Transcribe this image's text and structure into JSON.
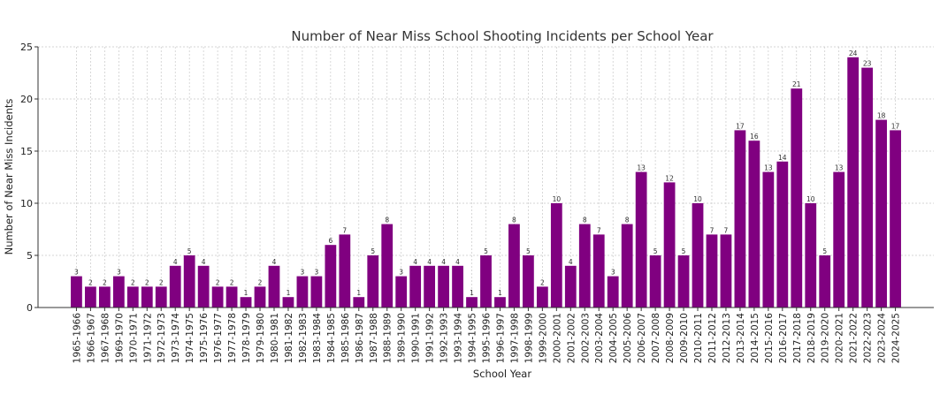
{
  "chart_data": {
    "type": "bar",
    "title": "Number of Near Miss School Shooting Incidents per School Year",
    "xlabel": "School Year",
    "ylabel": "Number of Near Miss Incidents",
    "ylim": [
      0,
      25
    ],
    "yticks": [
      0,
      5,
      10,
      15,
      20,
      25
    ],
    "grid": true,
    "bar_color": "#800080",
    "categories": [
      "1965-1966",
      "1966-1967",
      "1967-1968",
      "1969-1970",
      "1970-1971",
      "1971-1972",
      "1972-1973",
      "1973-1974",
      "1974-1975",
      "1975-1976",
      "1976-1977",
      "1977-1978",
      "1978-1979",
      "1979-1980",
      "1980-1981",
      "1981-1982",
      "1982-1983",
      "1983-1984",
      "1984-1985",
      "1985-1986",
      "1986-1987",
      "1987-1988",
      "1988-1989",
      "1989-1990",
      "1990-1991",
      "1991-1992",
      "1992-1993",
      "1993-1994",
      "1994-1995",
      "1995-1996",
      "1996-1997",
      "1997-1998",
      "1998-1999",
      "1999-2000",
      "2000-2001",
      "2001-2002",
      "2002-2003",
      "2003-2004",
      "2004-2005",
      "2005-2006",
      "2006-2007",
      "2007-2008",
      "2008-2009",
      "2009-2010",
      "2010-2011",
      "2011-2012",
      "2012-2013",
      "2013-2014",
      "2014-2015",
      "2015-2016",
      "2016-2017",
      "2017-2018",
      "2018-2019",
      "2019-2020",
      "2020-2021",
      "2021-2022",
      "2022-2023",
      "2023-2024",
      "2024-2025"
    ],
    "values": [
      3,
      2,
      2,
      3,
      2,
      2,
      2,
      4,
      5,
      4,
      2,
      2,
      1,
      2,
      4,
      1,
      3,
      3,
      6,
      7,
      1,
      5,
      8,
      3,
      4,
      4,
      4,
      4,
      1,
      5,
      1,
      8,
      5,
      2,
      10,
      4,
      8,
      7,
      3,
      8,
      13,
      5,
      12,
      5,
      10,
      7,
      7,
      17,
      16,
      13,
      14,
      21,
      10,
      5,
      13,
      24,
      23,
      18,
      17
    ]
  }
}
